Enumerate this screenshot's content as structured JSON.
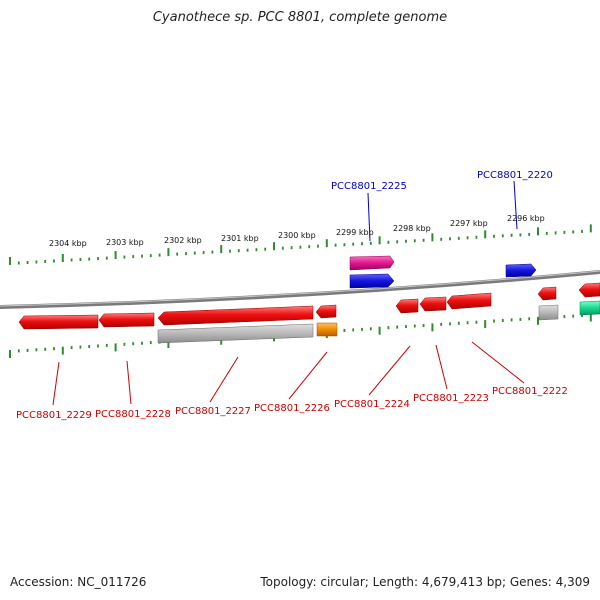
{
  "title": "Cyanothece sp. PCC 8801, complete genome",
  "footer": {
    "accession": "Accession: NC_011726",
    "summary": "Topology: circular; Length: 4,679,413 bp; Genes: 4,309"
  },
  "ruler_labels": [
    "2304 kbp",
    "2303 kbp",
    "2302 kbp",
    "2301 kbp",
    "2300 kbp",
    "2299 kbp",
    "2298 kbp",
    "2297 kbp",
    "2296 kbp"
  ],
  "gene_labels_top": [
    "PCC8801_2225",
    "PCC8801_2220"
  ],
  "gene_labels_bottom": [
    "PCC8801_2229",
    "PCC8801_2228",
    "PCC8801_2227",
    "PCC8801_2226",
    "PCC8801_2224",
    "PCC8801_2223",
    "PCC8801_2222"
  ],
  "colors": {
    "backbone": "#7a7a7a",
    "tick": "#2e8b2e",
    "gene_red": "#ee1111",
    "gene_gray": "#b8b8b8",
    "gene_blue": "#1515dd",
    "gene_magenta": "#e0188c",
    "gene_orange": "#f08c00",
    "gene_green": "#18d890",
    "label_red": "#cc0000",
    "label_blue": "#0000cc"
  }
}
